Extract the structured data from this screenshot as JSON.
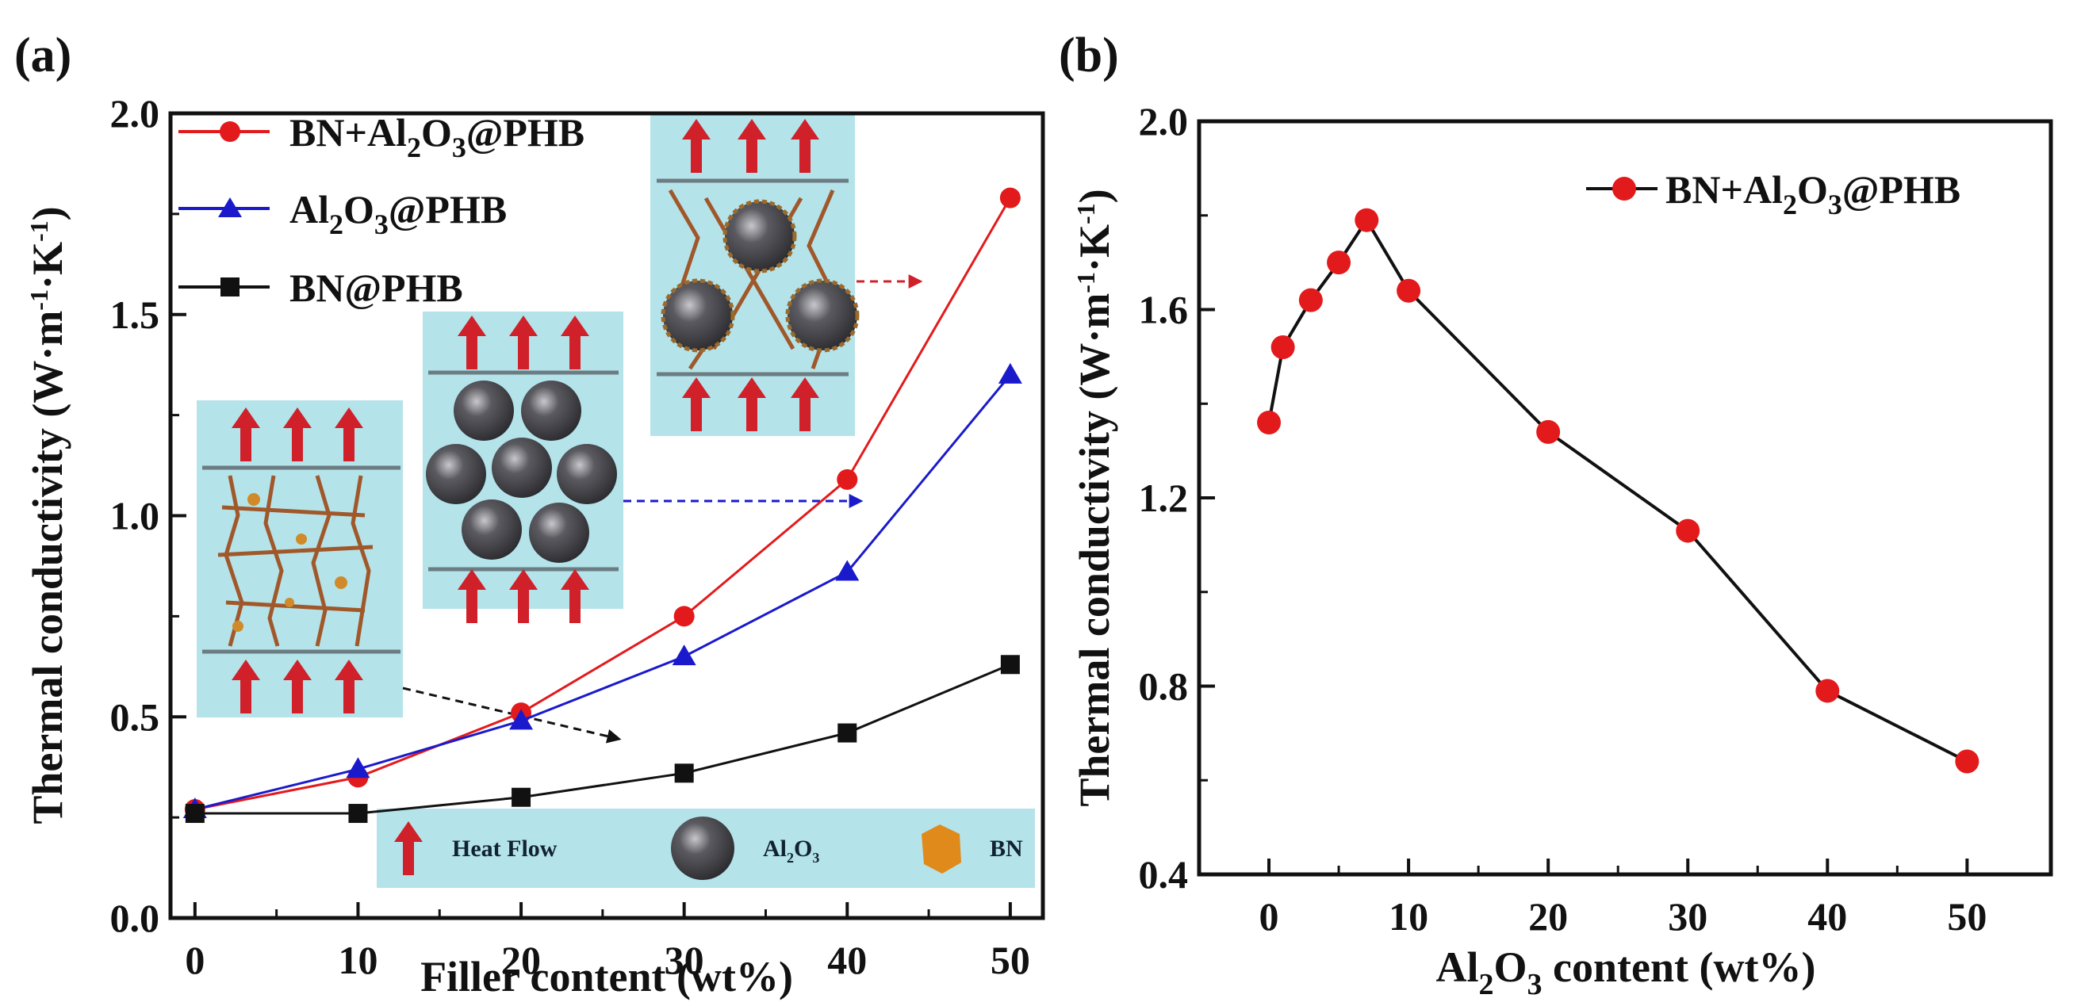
{
  "figure": {
    "panel_a_label": "(a)",
    "panel_b_label": "(b)"
  },
  "chart_data": [
    {
      "panel": "(a)",
      "type": "line",
      "title": "",
      "xlabel": "Filler content (wt%)",
      "ylabel": "Thermal conductivity (W·m⁻¹·K⁻¹)",
      "x": [
        0,
        10,
        20,
        30,
        40,
        50
      ],
      "xticks": [
        "0",
        "10",
        "20",
        "30",
        "40",
        "50"
      ],
      "yticks": [
        "0.0",
        "0.5",
        "1.0",
        "1.5",
        "2.0"
      ],
      "xlim": [
        -1.5,
        52
      ],
      "ylim": [
        0.0,
        2.0
      ],
      "grid": false,
      "legend_position": "upper left",
      "series": [
        {
          "name": "BN+Al2O3@PHB",
          "color": "#e31a1c",
          "marker": "circle",
          "values": [
            0.27,
            0.35,
            0.51,
            0.75,
            1.09,
            1.79
          ]
        },
        {
          "name": "Al2O3@PHB",
          "color": "#1a1acc",
          "marker": "triangle",
          "values": [
            0.27,
            0.37,
            0.49,
            0.65,
            0.86,
            1.35
          ]
        },
        {
          "name": "BN@PHB",
          "color": "#111111",
          "marker": "square",
          "values": [
            0.26,
            0.26,
            0.3,
            0.36,
            0.46,
            0.63
          ]
        }
      ],
      "annotations": {
        "inset_legend": [
          "Heat Flow",
          "Al2O3",
          "BN"
        ],
        "schematic_insets": [
          "BN network schematic",
          "Al2O3 sphere packing schematic",
          "BN+Al2O3 hybrid schematic"
        ]
      }
    },
    {
      "panel": "(b)",
      "type": "line",
      "title": "",
      "xlabel": "Al2O3 content (wt%)",
      "ylabel": "Thermal conductivity (W·m⁻¹·K⁻¹)",
      "x": [
        0,
        1,
        3,
        5,
        7,
        10,
        20,
        30,
        40,
        50
      ],
      "xticks": [
        "0",
        "10",
        "20",
        "30",
        "40",
        "50"
      ],
      "yticks": [
        "0.4",
        "0.8",
        "1.2",
        "1.6",
        "2.0"
      ],
      "xlim": [
        -5,
        56
      ],
      "ylim": [
        0.4,
        2.0
      ],
      "grid": false,
      "legend_position": "upper right",
      "series": [
        {
          "name": "BN+Al2O3@PHB",
          "color": "#e31a1c",
          "line_color": "#111111",
          "marker": "circle",
          "values": [
            1.36,
            1.52,
            1.62,
            1.7,
            1.79,
            1.64,
            1.34,
            1.13,
            0.79,
            0.64
          ]
        }
      ]
    }
  ],
  "panel_a": {
    "xlabel": "Filler content (wt%)",
    "ylabel_main": "Thermal conductivity (W·m",
    "ylabel_sup1": "-1",
    "ylabel_mid": "·K",
    "ylabel_sup2": "-1",
    "ylabel_end": ")",
    "xticks": [
      "0",
      "10",
      "20",
      "30",
      "40",
      "50"
    ],
    "yticks": [
      "0.0",
      "0.5",
      "1.0",
      "1.5",
      "2.0"
    ],
    "legend": [
      {
        "pre": "BN+Al",
        "sub1": "2",
        "mid": "O",
        "sub2": "3",
        "post": "@PHB"
      },
      {
        "pre": "Al",
        "sub1": "2",
        "mid": "O",
        "sub2": "3",
        "post": "@PHB"
      },
      {
        "pre": "BN@PHB",
        "sub1": "",
        "mid": "",
        "sub2": "",
        "post": ""
      }
    ],
    "inset_legend": {
      "heat_flow": "Heat Flow",
      "al2o3_pre": "Al",
      "al2o3_sub1": "2",
      "al2o3_mid": "O",
      "al2o3_sub2": "3",
      "bn": "BN"
    }
  },
  "panel_b": {
    "xlabel_pre": "Al",
    "xlabel_sub1": "2",
    "xlabel_mid": "O",
    "xlabel_sub2": "3",
    "xlabel_post": " content (wt%)",
    "ylabel_main": "Thermal conductivity (W·m",
    "ylabel_sup1": "-1",
    "ylabel_mid": "·K",
    "ylabel_sup2": "-1",
    "ylabel_end": ")",
    "xticks": [
      "0",
      "10",
      "20",
      "30",
      "40",
      "50"
    ],
    "yticks": [
      "0.4",
      "0.8",
      "1.2",
      "1.6",
      "2.0"
    ],
    "legend": {
      "pre": "BN+Al",
      "sub1": "2",
      "mid": "O",
      "sub2": "3",
      "post": "@PHB"
    }
  }
}
